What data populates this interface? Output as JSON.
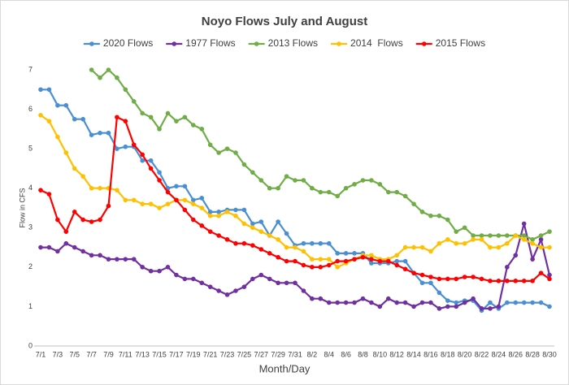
{
  "chart_data": {
    "type": "line",
    "title": "Noyo Flows July and August",
    "x_label": "Month/Day",
    "y_label": "Flow in CFS",
    "categories": [
      "7/1",
      null,
      "7/3",
      null,
      "7/5",
      null,
      "7/7",
      null,
      "7/9",
      null,
      "7/11",
      null,
      "7/13",
      null,
      "7/15",
      null,
      "7/17",
      null,
      "7/19",
      null,
      "7/21",
      null,
      "7/23",
      null,
      "7/25",
      null,
      "7/27",
      null,
      "7/29",
      null,
      "7/31",
      null,
      "8/2",
      null,
      "8/4",
      null,
      "8/6",
      null,
      "8/8",
      null,
      "8/10",
      null,
      "8/12",
      null,
      "8/14",
      null,
      "8/16",
      null,
      "8/18",
      null,
      "8/20",
      null,
      "8/22",
      null,
      "8/24",
      null,
      "8/26",
      null,
      "8/28",
      null,
      "8/30"
    ],
    "ylim": [
      0,
      7
    ],
    "yticks": [
      0,
      1,
      2,
      3,
      4,
      5,
      6,
      7
    ],
    "grid": false,
    "legend": "top",
    "series": [
      {
        "name": "2020 Flows",
        "color": "#4a8fd4",
        "values": [
          6.5,
          6.5,
          6.1,
          6.1,
          5.75,
          5.75,
          5.35,
          5.4,
          5.4,
          5.0,
          5.05,
          5.05,
          4.7,
          4.7,
          4.4,
          4.0,
          4.05,
          4.05,
          3.7,
          3.75,
          3.4,
          3.4,
          3.45,
          3.45,
          3.45,
          3.1,
          3.15,
          2.8,
          3.15,
          2.85,
          2.55,
          2.6,
          2.6,
          2.6,
          2.6,
          2.35,
          2.35,
          2.35,
          2.35,
          2.1,
          2.1,
          2.1,
          2.15,
          2.15,
          1.85,
          1.6,
          1.6,
          1.35,
          1.15,
          1.1,
          1.15,
          1.15,
          0.9,
          1.1,
          0.95,
          1.1,
          1.1,
          1.1,
          1.1,
          1.1,
          1.0
        ]
      },
      {
        "name": "1977 Flows",
        "color": "#7030a0",
        "values": [
          2.5,
          2.5,
          2.4,
          2.6,
          2.5,
          2.4,
          2.3,
          2.3,
          2.2,
          2.2,
          2.2,
          2.2,
          2.0,
          1.9,
          1.9,
          2.0,
          1.8,
          1.7,
          1.7,
          1.6,
          1.5,
          1.4,
          1.3,
          1.4,
          1.5,
          1.7,
          1.8,
          1.7,
          1.6,
          1.6,
          1.6,
          1.4,
          1.2,
          1.2,
          1.1,
          1.1,
          1.1,
          1.1,
          1.2,
          1.1,
          1.0,
          1.2,
          1.1,
          1.1,
          1.0,
          1.1,
          1.1,
          0.95,
          1.0,
          1.0,
          1.1,
          1.2,
          0.95,
          0.95,
          1.0,
          2.0,
          2.3,
          3.1,
          2.2,
          2.7,
          1.8
        ]
      },
      {
        "name": "2013 Flows",
        "color": "#70ad47",
        "values": [
          null,
          null,
          null,
          null,
          null,
          null,
          7.0,
          6.8,
          7.0,
          6.8,
          6.5,
          6.2,
          5.9,
          5.8,
          5.5,
          5.9,
          5.7,
          5.8,
          5.6,
          5.5,
          5.1,
          4.9,
          5.0,
          4.9,
          4.6,
          4.4,
          4.2,
          4.0,
          4.0,
          4.3,
          4.2,
          4.2,
          4.0,
          3.9,
          3.9,
          3.8,
          4.0,
          4.1,
          4.2,
          4.2,
          4.1,
          3.9,
          3.9,
          3.8,
          3.6,
          3.4,
          3.3,
          3.3,
          3.2,
          2.9,
          3.0,
          2.8,
          2.8,
          2.8,
          2.8,
          2.8,
          2.8,
          2.8,
          2.7,
          2.8,
          2.9
        ]
      },
      {
        "name": "2014  Flows",
        "color": "#ffc000",
        "values": [
          5.85,
          5.7,
          5.3,
          4.9,
          4.5,
          4.3,
          4.0,
          4.0,
          4.0,
          3.95,
          3.7,
          3.7,
          3.6,
          3.6,
          3.5,
          3.6,
          3.7,
          3.7,
          3.6,
          3.5,
          3.3,
          3.3,
          3.4,
          3.3,
          3.1,
          3.0,
          2.9,
          2.8,
          2.7,
          2.5,
          2.5,
          2.4,
          2.2,
          2.2,
          2.2,
          2.0,
          2.1,
          2.2,
          2.3,
          2.3,
          2.2,
          2.2,
          2.3,
          2.5,
          2.5,
          2.5,
          2.4,
          2.6,
          2.7,
          2.6,
          2.6,
          2.7,
          2.7,
          2.5,
          2.5,
          2.6,
          2.8,
          2.7,
          2.6,
          2.5,
          2.5
        ]
      },
      {
        "name": "2015 Flows",
        "color": "#ff0000",
        "values": [
          3.95,
          3.85,
          3.2,
          2.9,
          3.4,
          3.2,
          3.15,
          3.2,
          3.55,
          5.8,
          5.7,
          5.1,
          4.85,
          4.5,
          4.2,
          3.9,
          3.7,
          3.45,
          3.2,
          3.05,
          2.9,
          2.8,
          2.7,
          2.6,
          2.6,
          2.55,
          2.45,
          2.35,
          2.25,
          2.15,
          2.15,
          2.05,
          2.0,
          2.0,
          2.05,
          2.15,
          2.15,
          2.2,
          2.25,
          2.2,
          2.15,
          2.15,
          2.05,
          1.95,
          1.85,
          1.8,
          1.75,
          1.7,
          1.7,
          1.7,
          1.75,
          1.75,
          1.7,
          1.65,
          1.65,
          1.65,
          1.65,
          1.65,
          1.65,
          1.85,
          1.7
        ]
      }
    ]
  }
}
